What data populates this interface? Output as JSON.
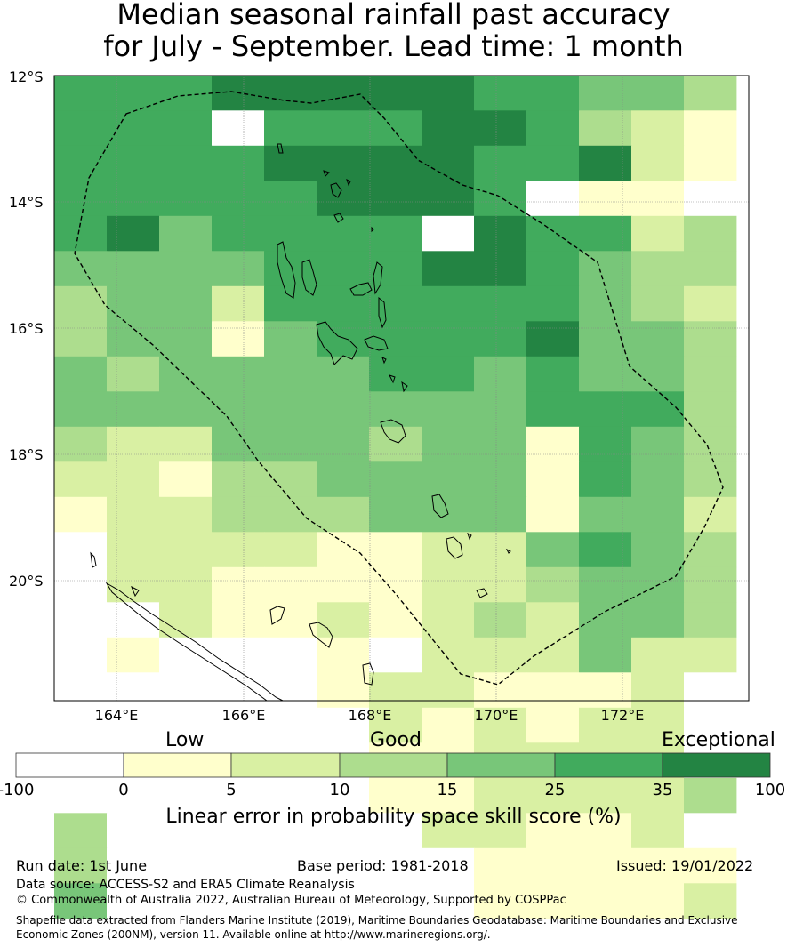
{
  "title": {
    "line1": "Median seasonal rainfall past accuracy",
    "line2": "for July - September. Lead time: 1 month"
  },
  "map": {
    "lat_labels": [
      "12°S",
      "14°S",
      "16°S",
      "18°S",
      "20°S"
    ],
    "lon_labels": [
      "164°E",
      "166°E",
      "168°E",
      "170°E",
      "172°E"
    ],
    "lon_range": [
      163.0,
      174.0
    ],
    "lat_range": [
      -12.0,
      -21.9
    ]
  },
  "colorbar": {
    "words": [
      "Low",
      "Good",
      "Exceptional"
    ],
    "ticks": [
      "-100",
      "0",
      "5",
      "10",
      "15",
      "25",
      "35",
      "100"
    ],
    "colors": [
      "#ffffff",
      "#ffffcc",
      "#d9f0a3",
      "#addd8e",
      "#78c679",
      "#41ab5d",
      "#238443"
    ],
    "label": "Linear error in probability space skill score (%)"
  },
  "footer": {
    "run_date": "Run date: 1st June",
    "base_period": "Base period: 1981-2018",
    "issued": "Issued: 19/01/2022",
    "data_source": "Data source: ACCESS-S2 and ERA5 Climate Reanalysis",
    "copyright": "© Commonwealth of Australia 2022, Australian Bureau of Meteorology, Supported by COSPPac",
    "shapefile_line1": "Shapefile data extracted from Flanders Marine Institute (2019), Maritime Boundaries Geodatabase: Maritime Boundaries and Exclusive",
    "shapefile_line2": "Economic Zones (200NM), version 11. Available online at http://www.marineregions.org/."
  },
  "grid": {
    "legend_index_rows": [
      "5556666655443",
      "5557555665321",
      "5555666655621",
      "5555566657110",
      "5645555765523",
      "4444555665433",
      "3442555555432",
      "3441455556443",
      "4344445545443",
      "4444444445553",
      "3224443441543",
      "2213344441543",
      "1223334441442",
      "0222211224543",
      "0221111223443",
      "0021121232443",
      "0100010222422",
      "0000012211120",
      "0000002121220",
      "0000001122220",
      "0000001122223",
      "3000000221120",
      "3000000011111",
      "4000000011112"
    ]
  }
}
